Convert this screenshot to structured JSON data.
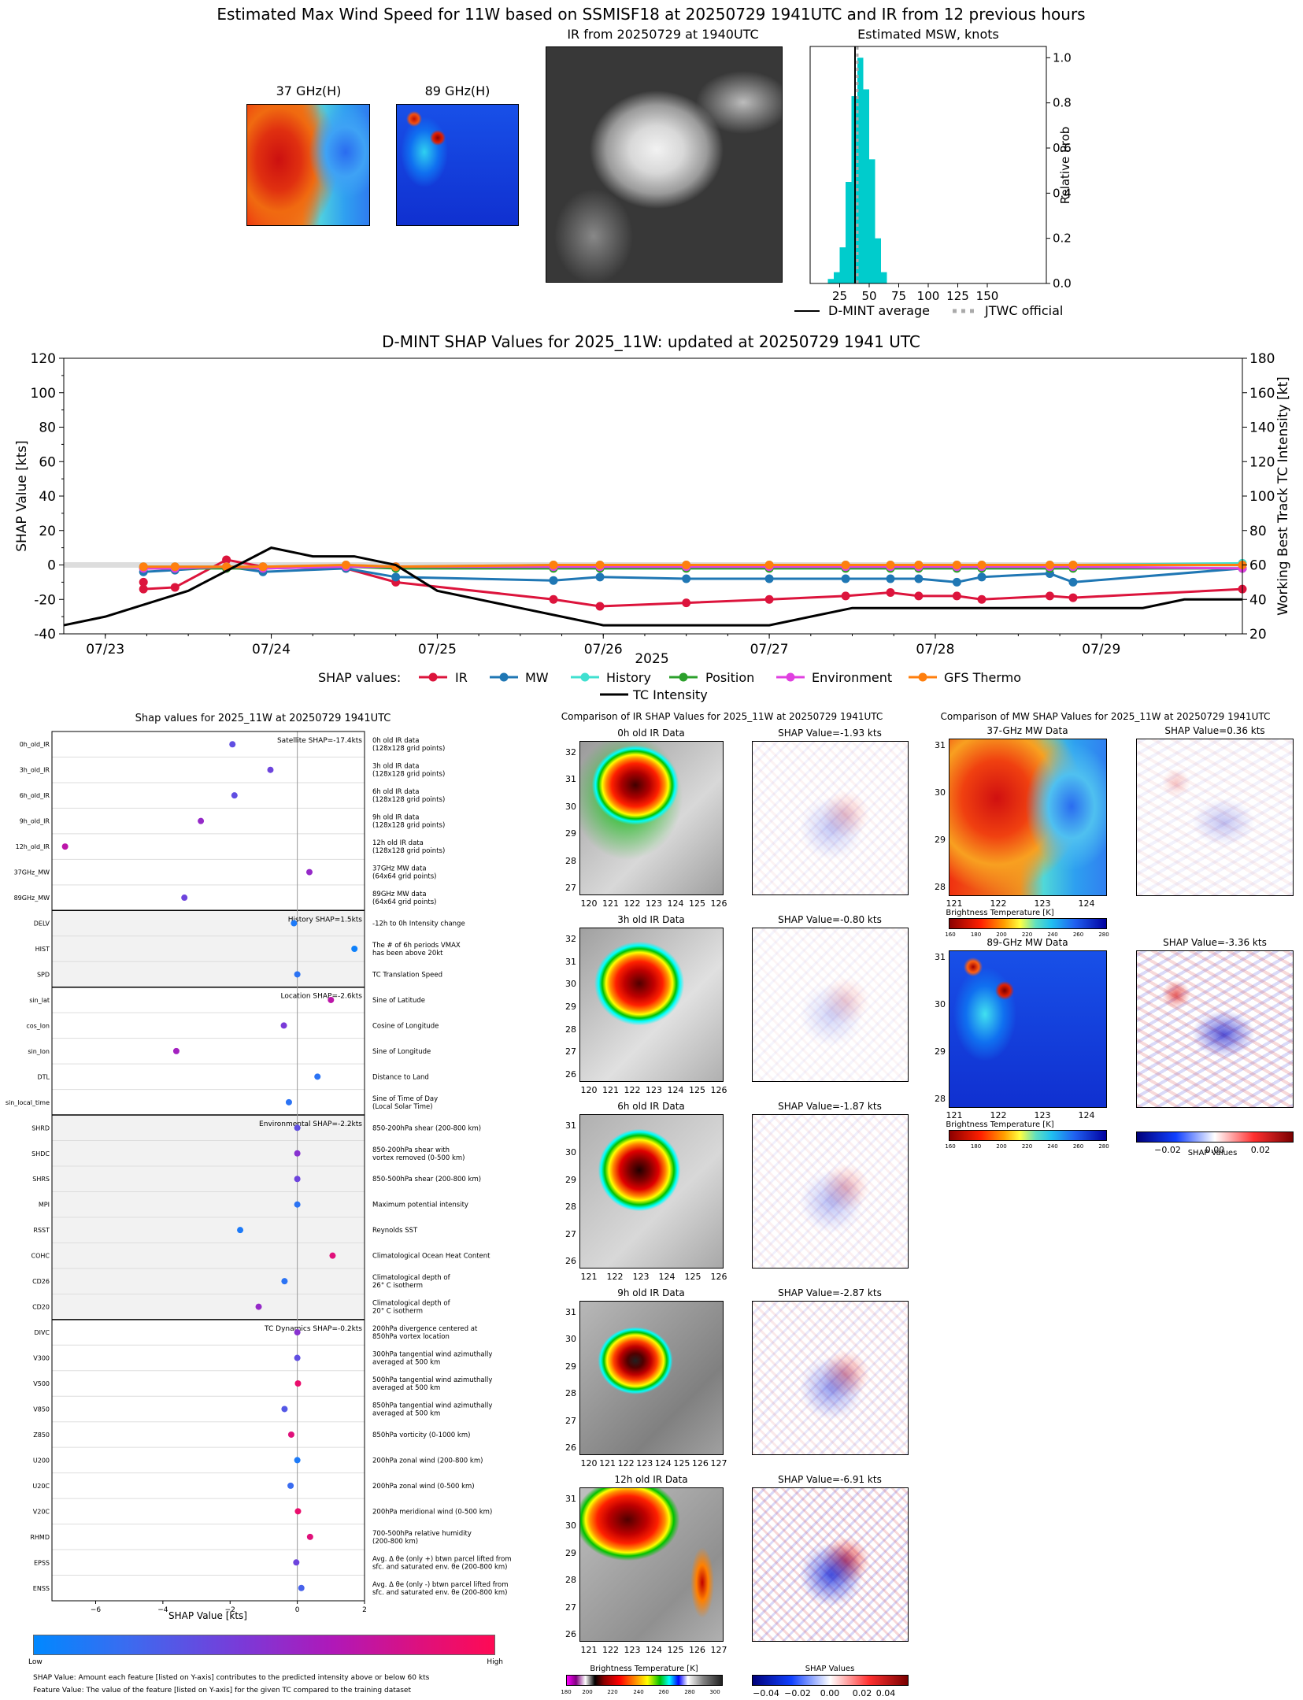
{
  "top": {
    "title": "Estimated Max Wind Speed for 11W based on SSMISF18 at 20250729 1941UTC and IR from 12 previous hours",
    "mw37_title": "37 GHz(H)",
    "mw89_title": "89 GHz(H)",
    "ir_title": "IR from 20250729 at 1940UTC",
    "hist_title": "Estimated MSW, knots",
    "hist_ylabel": "Relative Prob",
    "legend": [
      "D-MINT average",
      "JTWC official"
    ]
  },
  "shap_ts": {
    "title": "D-MINT SHAP Values for 2025_11W: updated at 20250729 1941 UTC",
    "ylabel": "SHAP Value [kts]",
    "ylabel2": "Working Best Track TC Intensity [kt]",
    "xlabel": "2025",
    "legend_label": "SHAP values:",
    "legend": [
      "IR",
      "MW",
      "History",
      "Position",
      "Environment",
      "GFS Thermo",
      "TC Intensity"
    ]
  },
  "feat": {
    "title": "Shap values for 2025_11W at 20250729 1941UTC",
    "xlabel": "SHAP Value [kts]",
    "group_labels": [
      "Satellite SHAP=-17.4kts",
      "History SHAP=1.5kts",
      "Location SHAP=-2.6kts",
      "Environmental SHAP=-2.2kts",
      "TC Dynamics SHAP=-0.2kts"
    ],
    "cb_low": "Low",
    "cb_high": "High",
    "note1": "SHAP Value: Amount each feature [listed on Y-axis] contributes to the predicted intensity above or below 60 kts",
    "note2": "Feature Value: The value of the feature [listed on Y-axis] for the given TC compared to the training dataset",
    "features": [
      {
        "name": "0h_old_IR",
        "desc": "0h old IR data|(128x128 grid points)"
      },
      {
        "name": "3h_old_IR",
        "desc": "3h old IR data|(128x128 grid points)"
      },
      {
        "name": "6h_old_IR",
        "desc": "6h old IR data|(128x128 grid points)"
      },
      {
        "name": "9h_old_IR",
        "desc": "9h old IR data|(128x128 grid points)"
      },
      {
        "name": "12h_old_IR",
        "desc": "12h old IR data|(128x128 grid points)"
      },
      {
        "name": "37GHz_MW",
        "desc": "37GHz MW data|(64x64 grid points)"
      },
      {
        "name": "89GHz_MW",
        "desc": "89GHz MW data|(64x64 grid points)"
      },
      {
        "name": "DELV",
        "desc": "-12h to 0h Intensity change"
      },
      {
        "name": "HIST",
        "desc": "The # of 6h periods VMAX|has been above 20kt"
      },
      {
        "name": "SPD",
        "desc": "TC Translation Speed"
      },
      {
        "name": "sin_lat",
        "desc": "Sine of Latitude"
      },
      {
        "name": "cos_lon",
        "desc": "Cosine of Longitude"
      },
      {
        "name": "sin_lon",
        "desc": "Sine of Longitude"
      },
      {
        "name": "DTL",
        "desc": "Distance to Land"
      },
      {
        "name": "sin_local_time",
        "desc": "Sine of Time of Day|(Local Solar Time)"
      },
      {
        "name": "SHRD",
        "desc": "850-200hPa shear (200-800 km)"
      },
      {
        "name": "SHDC",
        "desc": "850-200hPa shear with|vortex removed (0-500 km)"
      },
      {
        "name": "SHRS",
        "desc": "850-500hPa shear (200-800 km)"
      },
      {
        "name": "MPI",
        "desc": "Maximum potential intensity"
      },
      {
        "name": "RSST",
        "desc": "Reynolds SST"
      },
      {
        "name": "COHC",
        "desc": "Climatological Ocean Heat Content"
      },
      {
        "name": "CD26",
        "desc": "Climatological depth of|26° C isotherm"
      },
      {
        "name": "CD20",
        "desc": "Climatological depth of|20° C isotherm"
      },
      {
        "name": "DIVC",
        "desc": "200hPa divergence centered at|850hPa vortex location"
      },
      {
        "name": "V300",
        "desc": "300hPa tangential wind azimuthally|averaged at 500 km"
      },
      {
        "name": "V500",
        "desc": "500hPa tangential wind azimuthally|averaged at 500 km"
      },
      {
        "name": "V850",
        "desc": "850hPa tangential wind azimuthally|averaged at 500 km"
      },
      {
        "name": "Z850",
        "desc": "850hPa vorticity (0-1000 km)"
      },
      {
        "name": "U200",
        "desc": "200hPa zonal wind (200-800 km)"
      },
      {
        "name": "U20C",
        "desc": "200hPa zonal wind (0-500 km)"
      },
      {
        "name": "V20C",
        "desc": "200hPa meridional wind (0-500 km)"
      },
      {
        "name": "RHMD",
        "desc": "700-500hPa relative humidity|(200-800 km)"
      },
      {
        "name": "EPSS",
        "desc": "Avg. Δ θe (only +) btwn parcel lifted from|sfc. and saturated env. θe (200-800 km)"
      },
      {
        "name": "ENSS",
        "desc": "Avg. Δ θe (only -) btwn parcel lifted from|sfc. and saturated env. θe (200-800 km)"
      }
    ]
  },
  "ir_cmp": {
    "title": "Comparison of IR SHAP Values for 2025_11W at 20250729 1941UTC",
    "rows": [
      {
        "label": "0h old IR Data",
        "shap": "SHAP Value=-1.93 kts"
      },
      {
        "label": "3h old IR Data",
        "shap": "SHAP Value=-0.80 kts"
      },
      {
        "label": "6h old IR Data",
        "shap": "SHAP Value=-1.87 kts"
      },
      {
        "label": "9h old IR Data",
        "shap": "SHAP Value=-2.87 kts"
      },
      {
        "label": "12h old IR Data",
        "shap": "SHAP Value=-6.91 kts"
      }
    ],
    "cb1": "Brightness Temperature [K]",
    "cb2": "SHAP Values"
  },
  "mw_cmp": {
    "title": "Comparison of MW SHAP Values for 2025_11W at 20250729 1941UTC",
    "rows": [
      {
        "label": "37-GHz MW Data",
        "shap": "SHAP Value=0.36 kts"
      },
      {
        "label": "89-GHz MW Data",
        "shap": "SHAP Value=-3.36 kts"
      }
    ],
    "cb1": "Brightness Temperature [K]",
    "cb2": "SHAP Values"
  },
  "chart_data": [
    {
      "type": "bar",
      "title": "Estimated MSW, knots",
      "ylabel": "Relative Prob",
      "xlim": [
        0,
        200
      ],
      "ylim": [
        0,
        1.05
      ],
      "xticks": [
        25,
        50,
        75,
        100,
        125,
        150
      ],
      "yticks": [
        0.0,
        0.2,
        0.4,
        0.6,
        0.8,
        1.0
      ],
      "bins": [
        15,
        20,
        25,
        30,
        35,
        40,
        45,
        50,
        55,
        60
      ],
      "values": [
        0.02,
        0.05,
        0.16,
        0.45,
        0.83,
        1.0,
        0.86,
        0.55,
        0.2,
        0.05
      ],
      "dmint_average": 38,
      "jtwc_official": 40
    },
    {
      "type": "line",
      "title": "D-MINT SHAP Values for 2025_11W: updated at 20250729 1941 UTC",
      "ylim": [
        -40,
        120
      ],
      "ylim_right": [
        20,
        180
      ],
      "xlim": [
        22.75,
        29.85
      ],
      "xticks": [
        "07/23",
        "07/24",
        "07/25",
        "07/26",
        "07/27",
        "07/28",
        "07/29"
      ],
      "yticks": [
        -40,
        -20,
        0,
        20,
        40,
        60,
        80,
        100,
        120
      ],
      "yticks_right": [
        20,
        40,
        60,
        80,
        100,
        120,
        140,
        160,
        180
      ],
      "x": [
        23.23,
        23.23,
        23.42,
        23.73,
        23.95,
        24.45,
        24.75,
        25.7,
        25.98,
        26.5,
        27.0,
        27.46,
        27.73,
        27.9,
        28.13,
        28.28,
        28.69,
        28.83,
        29.85
      ],
      "colors": {
        "IR": "#dc143c",
        "MW": "#1f77b4",
        "History": "#40e0d0",
        "Position": "#2ca02c",
        "Environment": "#e040e0",
        "GFS Thermo": "#ff7f0e",
        "TC Intensity": "#000000"
      },
      "series": [
        {
          "name": "IR",
          "x": [
            23.23,
            23.23,
            23.42,
            23.73,
            23.95,
            24.45,
            24.75,
            25.7,
            25.98,
            26.5,
            27.0,
            27.46,
            27.73,
            27.9,
            28.13,
            28.28,
            28.69,
            28.83,
            29.85
          ],
          "values": [
            -10,
            -14,
            -13,
            3,
            -1,
            -2,
            -10,
            -20,
            -24,
            -22,
            -20,
            -18,
            -16,
            -18,
            -18,
            -20,
            -18,
            -19,
            -14
          ]
        },
        {
          "name": "MW",
          "x": [
            23.23,
            23.42,
            23.73,
            23.95,
            24.45,
            24.75,
            25.7,
            25.98,
            26.5,
            27.0,
            27.46,
            27.73,
            27.9,
            28.13,
            28.28,
            28.69,
            28.83,
            29.85
          ],
          "values": [
            -4,
            -3,
            -1,
            -4,
            -2,
            -7,
            -9,
            -7,
            -8,
            -8,
            -8,
            -8,
            -8,
            -10,
            -7,
            -5,
            -10,
            -2
          ]
        },
        {
          "name": "History",
          "x": [
            23.23,
            23.42,
            23.73,
            23.95,
            24.45,
            24.75,
            25.7,
            25.98,
            26.5,
            27.0,
            27.46,
            27.73,
            27.9,
            28.13,
            28.28,
            28.69,
            28.83,
            29.85
          ],
          "values": [
            -1,
            -1,
            -1,
            -1,
            0,
            -1,
            0,
            0,
            0,
            0,
            0,
            0,
            0,
            0,
            0,
            0,
            0,
            1
          ]
        },
        {
          "name": "Position",
          "x": [
            23.23,
            23.42,
            23.73,
            23.95,
            24.45,
            24.75,
            25.7,
            25.98,
            26.5,
            27.0,
            27.46,
            27.73,
            27.9,
            28.13,
            28.28,
            28.69,
            28.83,
            29.85
          ],
          "values": [
            -2,
            -2,
            -2,
            -2,
            -1,
            -2,
            -2,
            -2,
            -2,
            -2,
            -2,
            -2,
            -2,
            -2,
            -2,
            -2,
            -2,
            -2
          ]
        },
        {
          "name": "Environment",
          "x": [
            23.23,
            23.42,
            23.73,
            23.95,
            24.45,
            24.75,
            25.7,
            25.98,
            26.5,
            27.0,
            27.46,
            27.73,
            27.9,
            28.13,
            28.28,
            28.69,
            28.83,
            29.85
          ],
          "values": [
            -2,
            -2,
            -1,
            -2,
            -1,
            -1,
            -1,
            -1,
            -1,
            -1,
            -1,
            -1,
            -1,
            -1,
            -1,
            -1,
            -1,
            -2
          ]
        },
        {
          "name": "GFS Thermo",
          "x": [
            23.23,
            23.42,
            23.73,
            23.95,
            24.45,
            24.75,
            25.7,
            25.98,
            26.5,
            27.0,
            27.46,
            27.73,
            27.9,
            28.13,
            28.28,
            28.69,
            28.83,
            29.85
          ],
          "values": [
            -1,
            -1,
            -1,
            -1,
            0,
            -1,
            0,
            0,
            0,
            0,
            0,
            0,
            0,
            0,
            0,
            0,
            0,
            0
          ]
        },
        {
          "name": "TC Intensity",
          "axis": "right",
          "x": [
            22.75,
            23.0,
            23.5,
            24.0,
            24.25,
            24.5,
            24.75,
            25.0,
            25.5,
            25.75,
            26.0,
            26.5,
            27.0,
            27.25,
            27.5,
            28.0,
            28.5,
            29.0,
            29.25,
            29.5,
            29.85
          ],
          "values": [
            25,
            30,
            45,
            70,
            65,
            65,
            60,
            45,
            35,
            30,
            25,
            25,
            25,
            30,
            35,
            35,
            35,
            35,
            35,
            40,
            40
          ]
        }
      ]
    },
    {
      "type": "scatter",
      "title": "Shap values for 2025_11W at 20250729 1941UTC",
      "xlabel": "SHAP Value [kts]",
      "xlim": [
        -7.3,
        2.0
      ],
      "xticks": [
        -6,
        -4,
        -2,
        0,
        2
      ],
      "categories": [
        "0h_old_IR",
        "3h_old_IR",
        "6h_old_IR",
        "9h_old_IR",
        "12h_old_IR",
        "37GHz_MW",
        "89GHz_MW",
        "DELV",
        "HIST",
        "SPD",
        "sin_lat",
        "cos_lon",
        "sin_lon",
        "DTL",
        "sin_local_time",
        "SHRD",
        "SHDC",
        "SHRS",
        "MPI",
        "RSST",
        "COHC",
        "CD26",
        "CD20",
        "DIVC",
        "V300",
        "V500",
        "V850",
        "Z850",
        "U200",
        "U20C",
        "V20C",
        "RHMD",
        "EPSS",
        "ENSS"
      ],
      "values": [
        -1.93,
        -0.8,
        -1.87,
        -2.87,
        -6.91,
        0.36,
        -3.36,
        -0.1,
        1.7,
        0.0,
        1.0,
        -0.4,
        -3.6,
        0.6,
        -0.25,
        0.0,
        0.0,
        0.0,
        0.0,
        -1.7,
        1.05,
        -0.38,
        -1.15,
        0.0,
        0.0,
        0.02,
        -0.38,
        -0.18,
        0.0,
        -0.2,
        0.02,
        0.38,
        -0.03,
        0.12
      ],
      "feature_values": [
        0.35,
        0.4,
        0.35,
        0.55,
        0.7,
        0.55,
        0.4,
        0.1,
        0.05,
        0.15,
        0.7,
        0.45,
        0.6,
        0.15,
        0.15,
        0.35,
        0.5,
        0.4,
        0.15,
        0.1,
        0.85,
        0.15,
        0.55,
        0.5,
        0.35,
        0.9,
        0.3,
        0.85,
        0.1,
        0.2,
        0.9,
        0.85,
        0.4,
        0.25
      ]
    }
  ]
}
